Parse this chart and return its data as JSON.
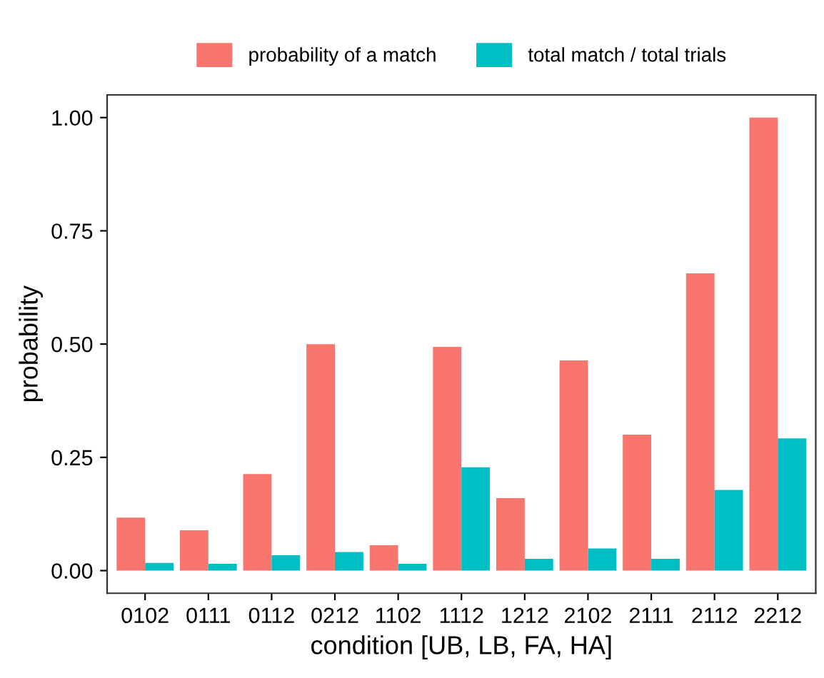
{
  "chart_data": {
    "type": "bar",
    "xlabel": "condition [UB, LB, FA, HA]",
    "ylabel": "probability",
    "categories": [
      "0102",
      "0111",
      "0112",
      "0212",
      "1102",
      "1112",
      "1212",
      "2102",
      "2111",
      "2112",
      "2212"
    ],
    "series": [
      {
        "name": "probability of a match",
        "color": "#f8766d",
        "values": [
          0.117,
          0.089,
          0.213,
          0.5,
          0.056,
          0.494,
          0.16,
          0.464,
          0.3,
          0.656,
          1.0
        ]
      },
      {
        "name": "total match / total trials",
        "color": "#00bfc4",
        "values": [
          0.017,
          0.015,
          0.034,
          0.041,
          0.015,
          0.228,
          0.026,
          0.049,
          0.026,
          0.178,
          0.292
        ]
      }
    ],
    "ylim": [
      -0.05,
      1.05
    ],
    "yticks": [
      {
        "value": 0,
        "label": "0.00"
      },
      {
        "value": 0.25,
        "label": "0.25"
      },
      {
        "value": 0.5,
        "label": "0.50"
      },
      {
        "value": 0.75,
        "label": "0.75"
      },
      {
        "value": 1,
        "label": "1.00"
      }
    ],
    "grid": false,
    "legend": "top"
  }
}
